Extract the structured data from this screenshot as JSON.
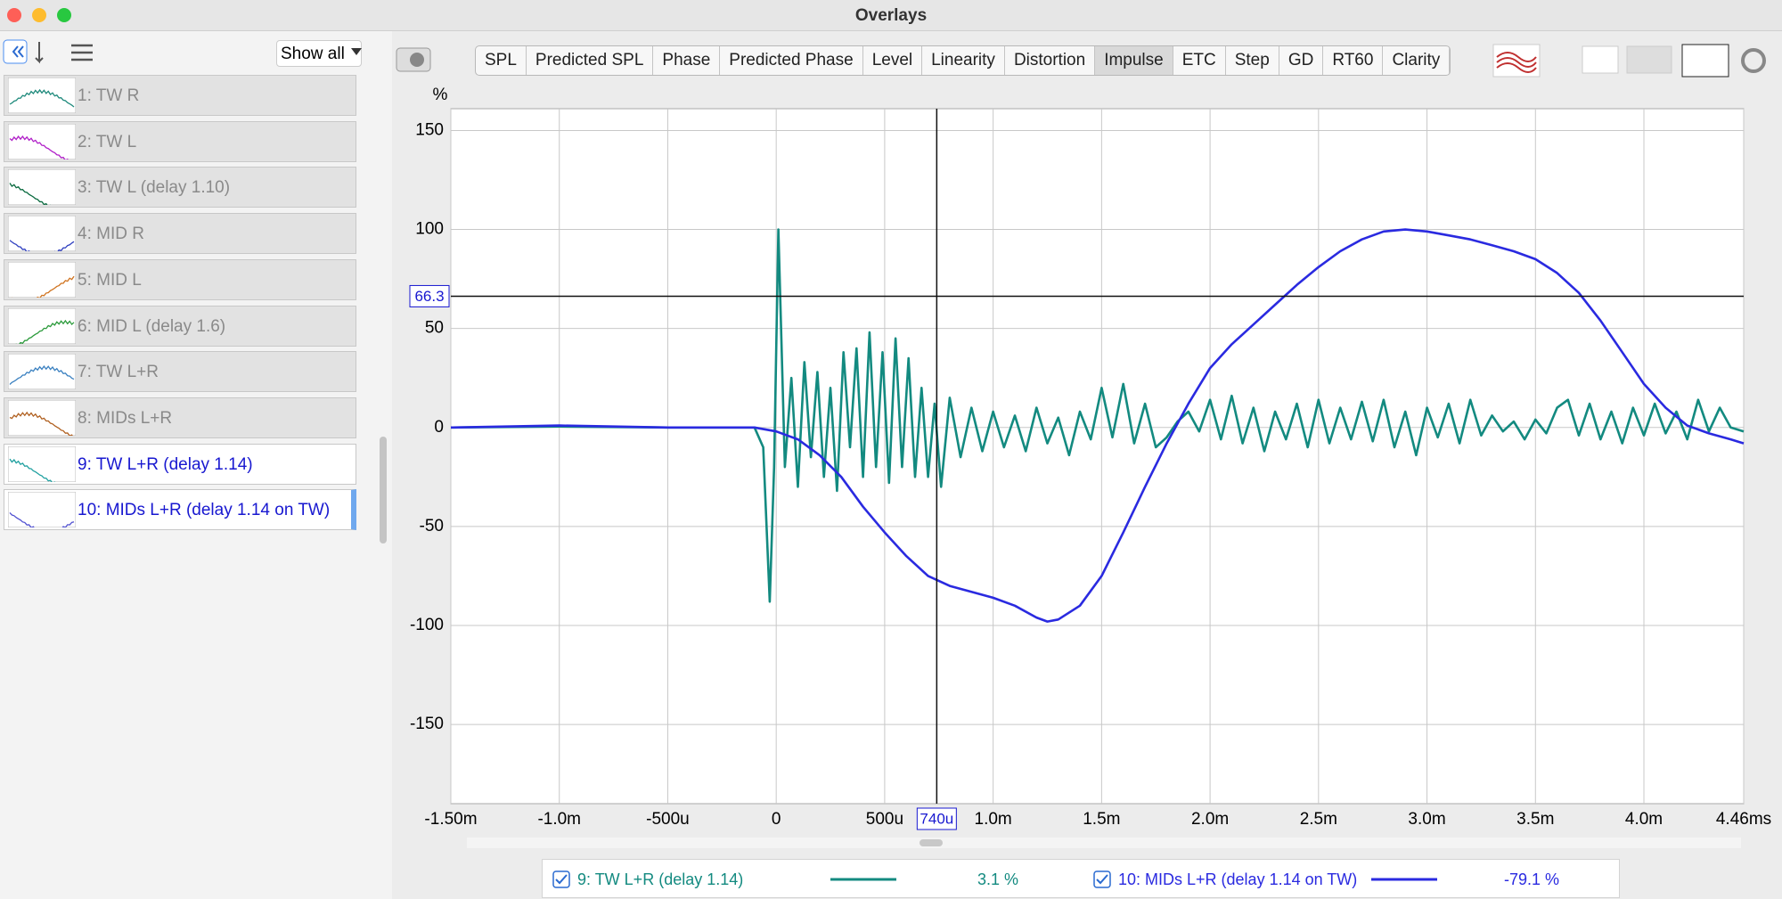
{
  "window": {
    "title": "Overlays"
  },
  "sidebar": {
    "filter": "Show all",
    "items": [
      {
        "label": "1: TW R",
        "color": "#1f8a7c"
      },
      {
        "label": "2: TW L",
        "color": "#b01ec8"
      },
      {
        "label": "3: TW L (delay 1.10)",
        "color": "#0b6b40"
      },
      {
        "label": "4: MID R",
        "color": "#3040c0"
      },
      {
        "label": "5: MID L",
        "color": "#d0731f"
      },
      {
        "label": "6: MID L (delay 1.6)",
        "color": "#2a9a3a"
      },
      {
        "label": "7: TW L+R",
        "color": "#3a80c0"
      },
      {
        "label": "8: MIDs L+R",
        "color": "#b06020"
      },
      {
        "label": "9: TW L+R (delay 1.14)",
        "color": "#20a0a0"
      },
      {
        "label": "10: MIDs L+R (delay 1.14 on TW)",
        "color": "#5050d0"
      }
    ]
  },
  "toolbar": {
    "tabs": [
      "SPL",
      "Predicted SPL",
      "Phase",
      "Predicted Phase",
      "Level",
      "Linearity",
      "Distortion",
      "Impulse",
      "ETC",
      "Step",
      "GD",
      "RT60",
      "Clarity"
    ],
    "active_tab": 7
  },
  "chart_data": {
    "type": "line",
    "y_label": "%",
    "xlim": [
      -1.5,
      4.46
    ],
    "ylim": [
      -190,
      161
    ],
    "xticks": [
      {
        "value": -1.5,
        "label": "-1.50m"
      },
      {
        "value": -1.0,
        "label": "-1.0m"
      },
      {
        "value": -0.5,
        "label": "-500u"
      },
      0,
      {
        "value": 0.5,
        "label": "500u"
      },
      {
        "value": 1.0,
        "label": "1.0m"
      },
      {
        "value": 1.5,
        "label": "1.5m"
      },
      {
        "value": 2.0,
        "label": "2.0m"
      },
      {
        "value": 2.5,
        "label": "2.5m"
      },
      {
        "value": 3.0,
        "label": "3.0m"
      },
      {
        "value": 3.5,
        "label": "3.5m"
      },
      {
        "value": 4.0,
        "label": "4.0m"
      },
      {
        "value": 4.46,
        "label": "4.46ms"
      }
    ],
    "yticks": [
      -150,
      -100,
      -50,
      0,
      50,
      100,
      150
    ],
    "grid": true,
    "cursor": {
      "x": {
        "value": 0.74,
        "label": "740u"
      },
      "y": 66.3
    },
    "series": [
      {
        "name": "9: TW L+R (delay 1.14)",
        "color": "#138a80",
        "readout": "3.1 %",
        "x": [
          -1.5,
          -1.0,
          -0.5,
          -0.1,
          -0.06,
          -0.03,
          -0.01,
          0.01,
          0.04,
          0.07,
          0.1,
          0.13,
          0.16,
          0.19,
          0.22,
          0.25,
          0.28,
          0.31,
          0.34,
          0.37,
          0.4,
          0.43,
          0.46,
          0.49,
          0.52,
          0.55,
          0.58,
          0.61,
          0.64,
          0.67,
          0.7,
          0.73,
          0.76,
          0.8,
          0.85,
          0.9,
          0.95,
          1.0,
          1.05,
          1.1,
          1.15,
          1.2,
          1.25,
          1.3,
          1.35,
          1.4,
          1.45,
          1.5,
          1.55,
          1.6,
          1.65,
          1.7,
          1.75,
          1.8,
          1.85,
          1.9,
          1.95,
          2.0,
          2.05,
          2.1,
          2.15,
          2.2,
          2.25,
          2.3,
          2.35,
          2.4,
          2.45,
          2.5,
          2.55,
          2.6,
          2.65,
          2.7,
          2.75,
          2.8,
          2.85,
          2.9,
          2.95,
          3.0,
          3.05,
          3.1,
          3.15,
          3.2,
          3.25,
          3.3,
          3.35,
          3.4,
          3.45,
          3.5,
          3.55,
          3.6,
          3.65,
          3.7,
          3.75,
          3.8,
          3.85,
          3.9,
          3.95,
          4.0,
          4.05,
          4.1,
          4.15,
          4.2,
          4.25,
          4.3,
          4.35,
          4.4,
          4.46
        ],
        "values": [
          0,
          0.5,
          0,
          0,
          -10,
          -88,
          -20,
          100,
          -20,
          25,
          -30,
          33,
          -15,
          28,
          -25,
          20,
          -32,
          38,
          -10,
          40,
          -25,
          48,
          -20,
          38,
          -28,
          45,
          -20,
          35,
          -25,
          20,
          -25,
          12,
          -30,
          15,
          -15,
          10,
          -12,
          8,
          -10,
          6,
          -12,
          10,
          -8,
          5,
          -14,
          8,
          -6,
          20,
          -5,
          22,
          -8,
          12,
          -10,
          -5,
          3,
          8,
          -2,
          14,
          -6,
          16,
          -8,
          10,
          -12,
          8,
          -6,
          12,
          -10,
          14,
          -8,
          10,
          -6,
          13,
          -7,
          14,
          -10,
          8,
          -14,
          10,
          -5,
          12,
          -8,
          14,
          -4,
          6,
          -2,
          3,
          -6,
          4,
          -3,
          10,
          14,
          -4,
          12,
          -6,
          8,
          -8,
          10,
          -4,
          12,
          -3,
          8,
          -6,
          14,
          -2,
          10,
          0,
          -2
        ]
      },
      {
        "name": "10: MIDs L+R (delay 1.14 on TW)",
        "color": "#2a2ae0",
        "readout": "-79.1 %",
        "x": [
          -1.5,
          -1.0,
          -0.5,
          -0.1,
          0,
          0.1,
          0.2,
          0.3,
          0.4,
          0.5,
          0.6,
          0.7,
          0.8,
          0.9,
          1.0,
          1.1,
          1.2,
          1.25,
          1.3,
          1.4,
          1.5,
          1.6,
          1.7,
          1.8,
          1.9,
          2.0,
          2.1,
          2.2,
          2.3,
          2.4,
          2.5,
          2.6,
          2.7,
          2.8,
          2.9,
          3.0,
          3.1,
          3.2,
          3.3,
          3.4,
          3.5,
          3.6,
          3.7,
          3.8,
          3.9,
          4.0,
          4.1,
          4.2,
          4.3,
          4.4,
          4.46
        ],
        "values": [
          0,
          1,
          0,
          0,
          -2,
          -6,
          -14,
          -25,
          -40,
          -53,
          -65,
          -75,
          -80,
          -83,
          -86,
          -90,
          -96,
          -98,
          -97,
          -90,
          -75,
          -53,
          -30,
          -8,
          12,
          30,
          42,
          52,
          62,
          72,
          81,
          89,
          95,
          99,
          100,
          99,
          97,
          95,
          92,
          89,
          85,
          78,
          68,
          54,
          38,
          22,
          10,
          1,
          -3,
          -6,
          -8
        ]
      }
    ]
  }
}
